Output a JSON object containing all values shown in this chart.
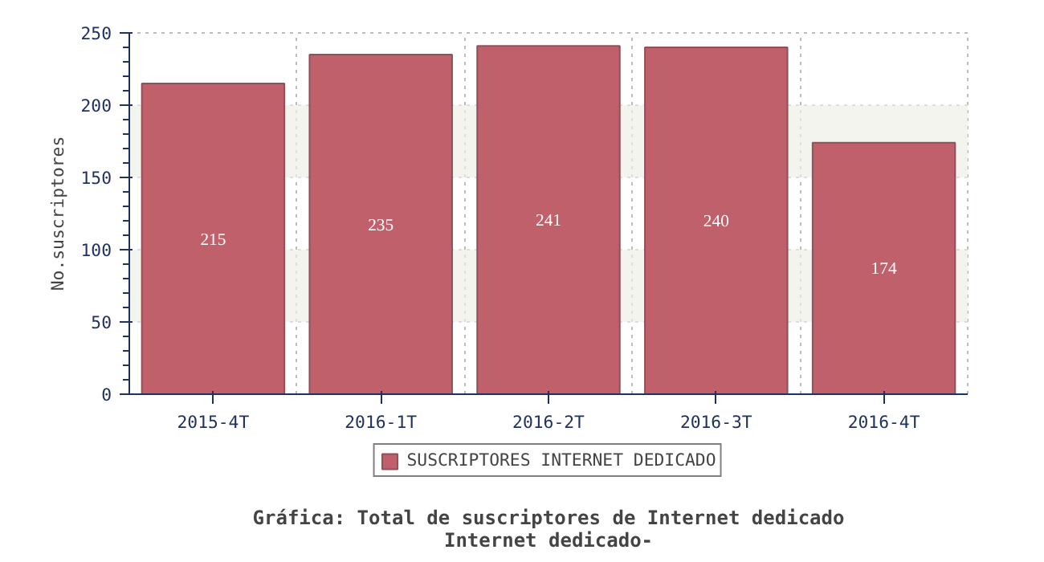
{
  "chart_data": {
    "type": "bar",
    "title": "Gráfica: Total de suscriptores de Internet dedicado",
    "subtitle": "Internet dedicado-",
    "ylabel": "No.suscriptores",
    "categories": [
      "2015-4T",
      "2016-1T",
      "2016-2T",
      "2016-3T",
      "2016-4T"
    ],
    "series": [
      {
        "name": "SUSCRIPTORES INTERNET DEDICADO",
        "color": "#c0606b",
        "values": [
          215,
          235,
          241,
          240,
          174
        ]
      }
    ],
    "ylim": [
      0,
      250
    ],
    "yticks": [
      0,
      50,
      100,
      150,
      200,
      250
    ],
    "grid": true,
    "legend": "bottom",
    "data_labels": true
  }
}
